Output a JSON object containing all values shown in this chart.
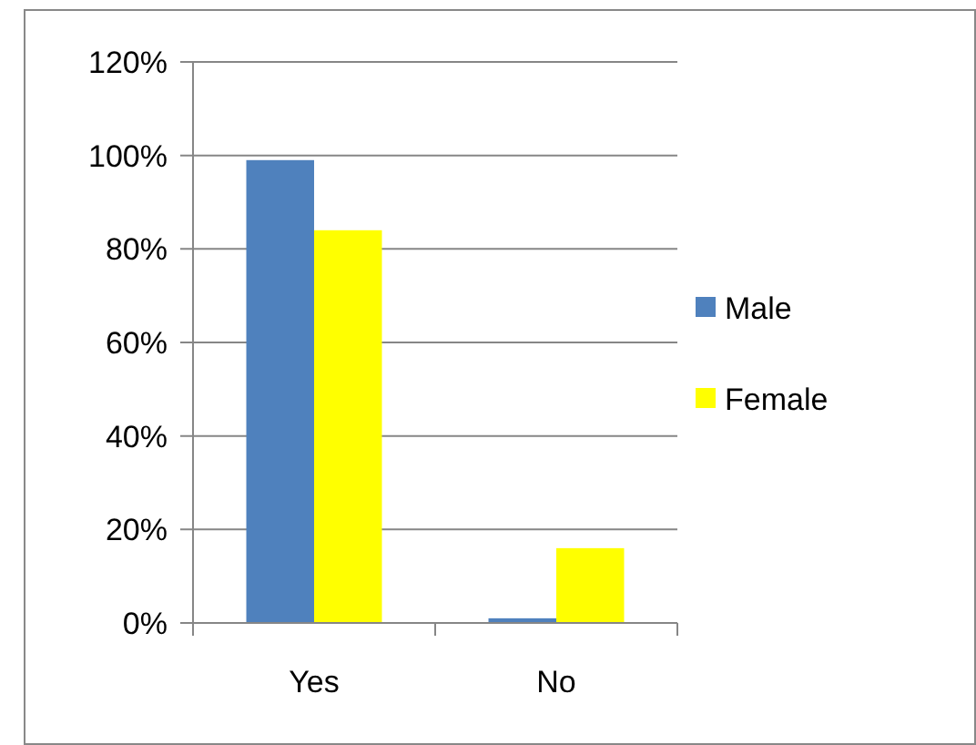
{
  "chart_data": {
    "type": "bar",
    "categories": [
      "Yes",
      "No"
    ],
    "series": [
      {
        "name": "Male",
        "color": "#4f81bd",
        "values": [
          99,
          1
        ]
      },
      {
        "name": "Female",
        "color": "#ffff00",
        "values": [
          84,
          16
        ]
      }
    ],
    "ylim": [
      0,
      120
    ],
    "yticks": [
      {
        "value": 0,
        "label": "0%"
      },
      {
        "value": 20,
        "label": "20%"
      },
      {
        "value": 40,
        "label": "40%"
      },
      {
        "value": 60,
        "label": "60%"
      },
      {
        "value": 80,
        "label": "80%"
      },
      {
        "value": 100,
        "label": "100%"
      },
      {
        "value": 120,
        "label": "120%"
      }
    ],
    "grid": "y",
    "legend": "right"
  }
}
